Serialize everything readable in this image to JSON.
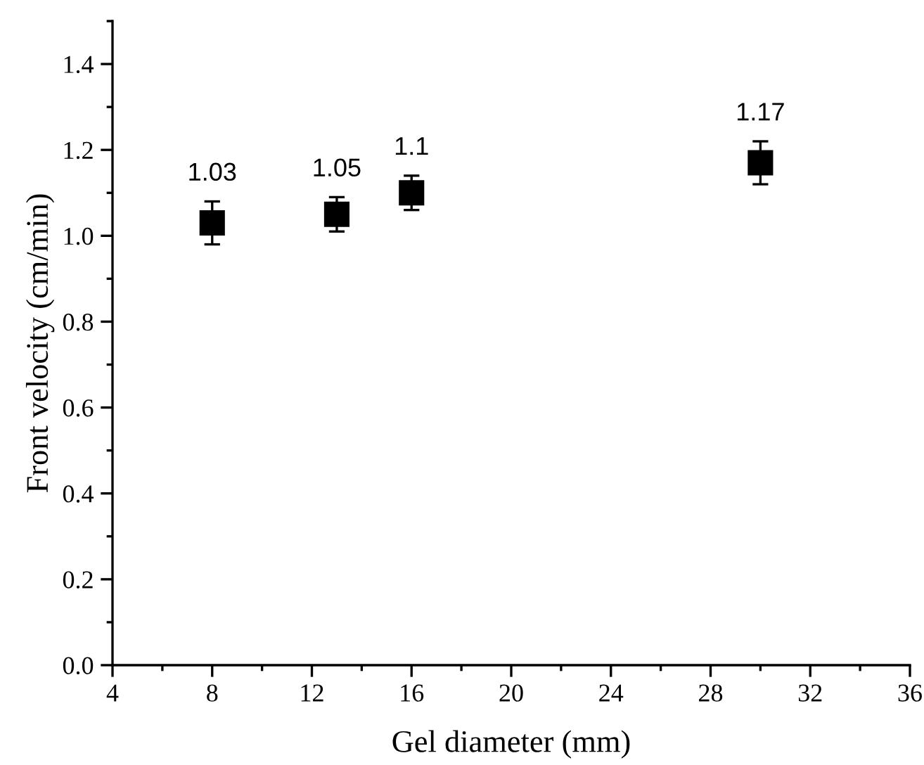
{
  "chart_data": {
    "type": "scatter",
    "xlabel": "Gel diameter (mm)",
    "ylabel": "Front velocity (cm/min)",
    "x": [
      8,
      13,
      16,
      30
    ],
    "series": [
      {
        "color": "#000000",
        "values": [
          1.03,
          1.05,
          1.1,
          1.17
        ],
        "errors": [
          0.05,
          0.04,
          0.04,
          0.05
        ]
      }
    ],
    "marker": "square",
    "data_labels": true,
    "grid": false,
    "legend": false,
    "xlim": [
      4,
      36
    ],
    "xticks": [
      4,
      8,
      12,
      16,
      20,
      24,
      28,
      32,
      36
    ],
    "ylim": [
      0,
      1.5
    ],
    "yticks": [
      {
        "value": 0,
        "label": "0.0"
      },
      {
        "value": 0.2,
        "label": "0.2"
      },
      {
        "value": 0.4,
        "label": "0.4"
      },
      {
        "value": 0.6,
        "label": "0.6"
      },
      {
        "value": 0.8,
        "label": "0.8"
      },
      {
        "value": 1.0,
        "label": "1.0"
      },
      {
        "value": 1.2,
        "label": "1.2"
      },
      {
        "value": 1.4,
        "label": "1.4"
      }
    ]
  }
}
